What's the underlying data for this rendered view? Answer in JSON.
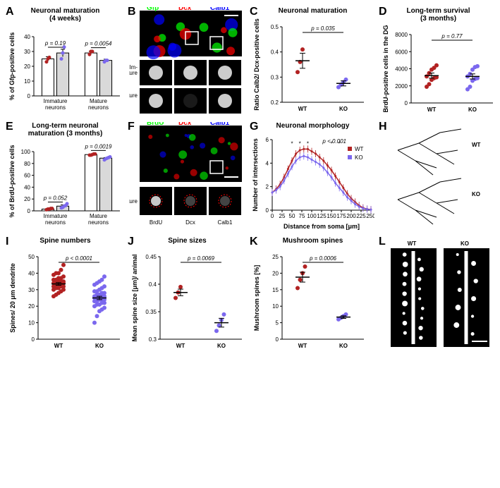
{
  "colors": {
    "wt": "#b22222",
    "ko": "#7b68ee",
    "bar_wt_fill": "#ffffff",
    "bar_ko_fill": "#d9d9d9",
    "axis": "#000000",
    "gfp": "#00ff00",
    "dcx": "#ff0000",
    "calb1": "#0000ff",
    "brdu": "#00ff00"
  },
  "panelA": {
    "title": "Neuronal maturation",
    "subtitle": "(4 weeks)",
    "ylabel": "% of Gfp-positive cells",
    "ylim": [
      0,
      40
    ],
    "ytick_step": 10,
    "groups": [
      "Immature\nneurons",
      "Mature\nneurons"
    ],
    "wt_means": [
      25,
      29
    ],
    "wt_sem": [
      1.5,
      1.2
    ],
    "ko_means": [
      29,
      24
    ],
    "ko_sem": [
      2.5,
      0.8
    ],
    "wt_points": [
      [
        23,
        25,
        26
      ],
      [
        28,
        30,
        30
      ]
    ],
    "ko_points": [
      [
        25,
        29,
        33
      ],
      [
        23,
        24,
        24
      ]
    ],
    "pvals": [
      "p = 0.19",
      "p = 0.0054"
    ]
  },
  "panelB": {
    "labels": [
      "Gfp",
      "Dcx",
      "Calb1"
    ],
    "colors": [
      "#00ff00",
      "#ff0000",
      "#0000ff"
    ],
    "rows": [
      "Im-\nmature",
      "Mature"
    ]
  },
  "panelC": {
    "title": "Neuronal maturation",
    "ylabel": "Ratio Calb2/ Dcx-positive cells",
    "ylim": [
      0.2,
      0.5
    ],
    "yticks": [
      0.2,
      0.3,
      0.4,
      0.5
    ],
    "groups": [
      "WT",
      "KO"
    ],
    "wt_points": [
      0.32,
      0.36,
      0.41
    ],
    "ko_points": [
      0.26,
      0.27,
      0.28,
      0.29
    ],
    "wt_mean": 0.365,
    "wt_sem": 0.03,
    "ko_mean": 0.275,
    "ko_sem": 0.01,
    "pval": "p = 0.035"
  },
  "panelD": {
    "title": "Long-term survival",
    "subtitle": "(3 months)",
    "ylabel": "BrdU-positive cells in the DG",
    "ylim": [
      0,
      8000
    ],
    "ytick_step": 2000,
    "groups": [
      "WT",
      "KO"
    ],
    "wt_points": [
      1900,
      2200,
      2700,
      2900,
      3000,
      3100,
      3500,
      3900,
      4100,
      4400
    ],
    "ko_points": [
      1600,
      1900,
      2600,
      2800,
      2900,
      3100,
      3400,
      3900,
      4200,
      4300
    ],
    "wt_mean": 3200,
    "wt_sem": 300,
    "ko_mean": 3100,
    "ko_sem": 300,
    "pval": "p = 0.77"
  },
  "panelE": {
    "title": "Long-term neuronal",
    "subtitle": "maturation (3 months)",
    "ylabel": "% of BrdU-positive cells",
    "ylim": [
      0,
      100
    ],
    "ytick_step": 20,
    "groups": [
      "Immature\nneurons",
      "Mature\nneurons"
    ],
    "wt_means": [
      3,
      95
    ],
    "wt_sem": [
      1,
      1
    ],
    "ko_means": [
      8,
      89
    ],
    "ko_sem": [
      2,
      1
    ],
    "wt_points": [
      [
        2,
        3,
        3,
        4,
        4
      ],
      [
        94,
        94,
        95,
        96,
        96
      ]
    ],
    "ko_points": [
      [
        5,
        6,
        8,
        9,
        12
      ],
      [
        86,
        88,
        89,
        90,
        91
      ]
    ],
    "pvals": [
      "p = 0.052",
      "p = 0.0019"
    ]
  },
  "panelF": {
    "labels": [
      "BrdU",
      "Dcx",
      "Calb1"
    ],
    "colors": [
      "#00ff00",
      "#ff0000",
      "#0000ff"
    ],
    "row": "Mature"
  },
  "panelG": {
    "title": "Neuronal morphology",
    "ylabel": "Number of intersections",
    "xlabel": "Distance from soma [μm]",
    "xlim": [
      0,
      250
    ],
    "xtick_step": 25,
    "ylim": [
      0,
      6
    ],
    "ytick_step": 2,
    "legend": [
      "WT",
      "KO"
    ],
    "pval": "p < 0.001",
    "x": [
      0,
      10,
      20,
      30,
      40,
      50,
      60,
      70,
      80,
      90,
      100,
      110,
      120,
      130,
      140,
      150,
      160,
      170,
      180,
      190,
      200,
      210,
      220,
      230,
      240,
      250
    ],
    "wt_y": [
      1.5,
      1.8,
      2.2,
      2.8,
      3.5,
      4.2,
      4.8,
      5.1,
      5.2,
      5.2,
      5.0,
      4.8,
      4.5,
      4.2,
      3.8,
      3.4,
      2.9,
      2.4,
      1.9,
      1.4,
      1.0,
      0.7,
      0.4,
      0.2,
      0.1,
      0.05
    ],
    "ko_y": [
      1.5,
      1.7,
      2.0,
      2.5,
      3.1,
      3.7,
      4.2,
      4.5,
      4.6,
      4.5,
      4.3,
      4.1,
      3.9,
      3.6,
      3.2,
      2.8,
      2.3,
      1.9,
      1.5,
      1.1,
      0.8,
      0.5,
      0.3,
      0.15,
      0.08,
      0.04
    ],
    "sem": 0.3,
    "stars_x": [
      50,
      70,
      90,
      150,
      170
    ]
  },
  "panelH": {
    "labels": [
      "WT",
      "KO"
    ]
  },
  "panelI": {
    "title": "Spine numbers",
    "ylabel": "Spines/ 20 μm dendrite",
    "ylim": [
      0,
      50
    ],
    "ytick_step": 10,
    "groups": [
      "WT",
      "KO"
    ],
    "wt_points": [
      26,
      27,
      28,
      29,
      30,
      30,
      31,
      31,
      32,
      32,
      32,
      33,
      33,
      33,
      34,
      34,
      34,
      35,
      35,
      35,
      36,
      36,
      37,
      37,
      38,
      39,
      40,
      40,
      42,
      45
    ],
    "ko_points": [
      10,
      14,
      17,
      18,
      19,
      20,
      21,
      21,
      22,
      22,
      23,
      23,
      24,
      24,
      24,
      25,
      25,
      25,
      26,
      26,
      26,
      27,
      27,
      28,
      28,
      29,
      29,
      30,
      31,
      32,
      33,
      34,
      35,
      36,
      38
    ],
    "wt_mean": 33.5,
    "wt_sem": 0.8,
    "ko_mean": 25,
    "ko_sem": 1,
    "pval": "p < 0.0001"
  },
  "panelJ": {
    "title": "Spine sizes",
    "ylabel": "Mean spine size [μm]/ animal",
    "ylim": [
      0.3,
      0.45
    ],
    "yticks": [
      0.3,
      0.35,
      0.4,
      0.45
    ],
    "groups": [
      "WT",
      "KO"
    ],
    "wt_points": [
      0.375,
      0.385,
      0.395
    ],
    "ko_points": [
      0.315,
      0.325,
      0.335,
      0.345
    ],
    "wt_mean": 0.385,
    "wt_sem": 0.006,
    "ko_mean": 0.33,
    "ko_sem": 0.008,
    "pval": "p = 0.0069"
  },
  "panelK": {
    "title": "Mushroom spines",
    "ylabel": "Mushroom spines [%]",
    "ylim": [
      0,
      25
    ],
    "ytick_step": 5,
    "groups": [
      "WT",
      "KO"
    ],
    "wt_points": [
      15.5,
      18,
      20,
      22
    ],
    "ko_points": [
      6,
      6.5,
      7,
      7.5
    ],
    "wt_mean": 18.8,
    "wt_sem": 1.5,
    "ko_mean": 6.7,
    "ko_sem": 0.4,
    "pval": "p = 0.0006"
  },
  "panelL": {
    "labels": [
      "WT",
      "KO"
    ]
  }
}
